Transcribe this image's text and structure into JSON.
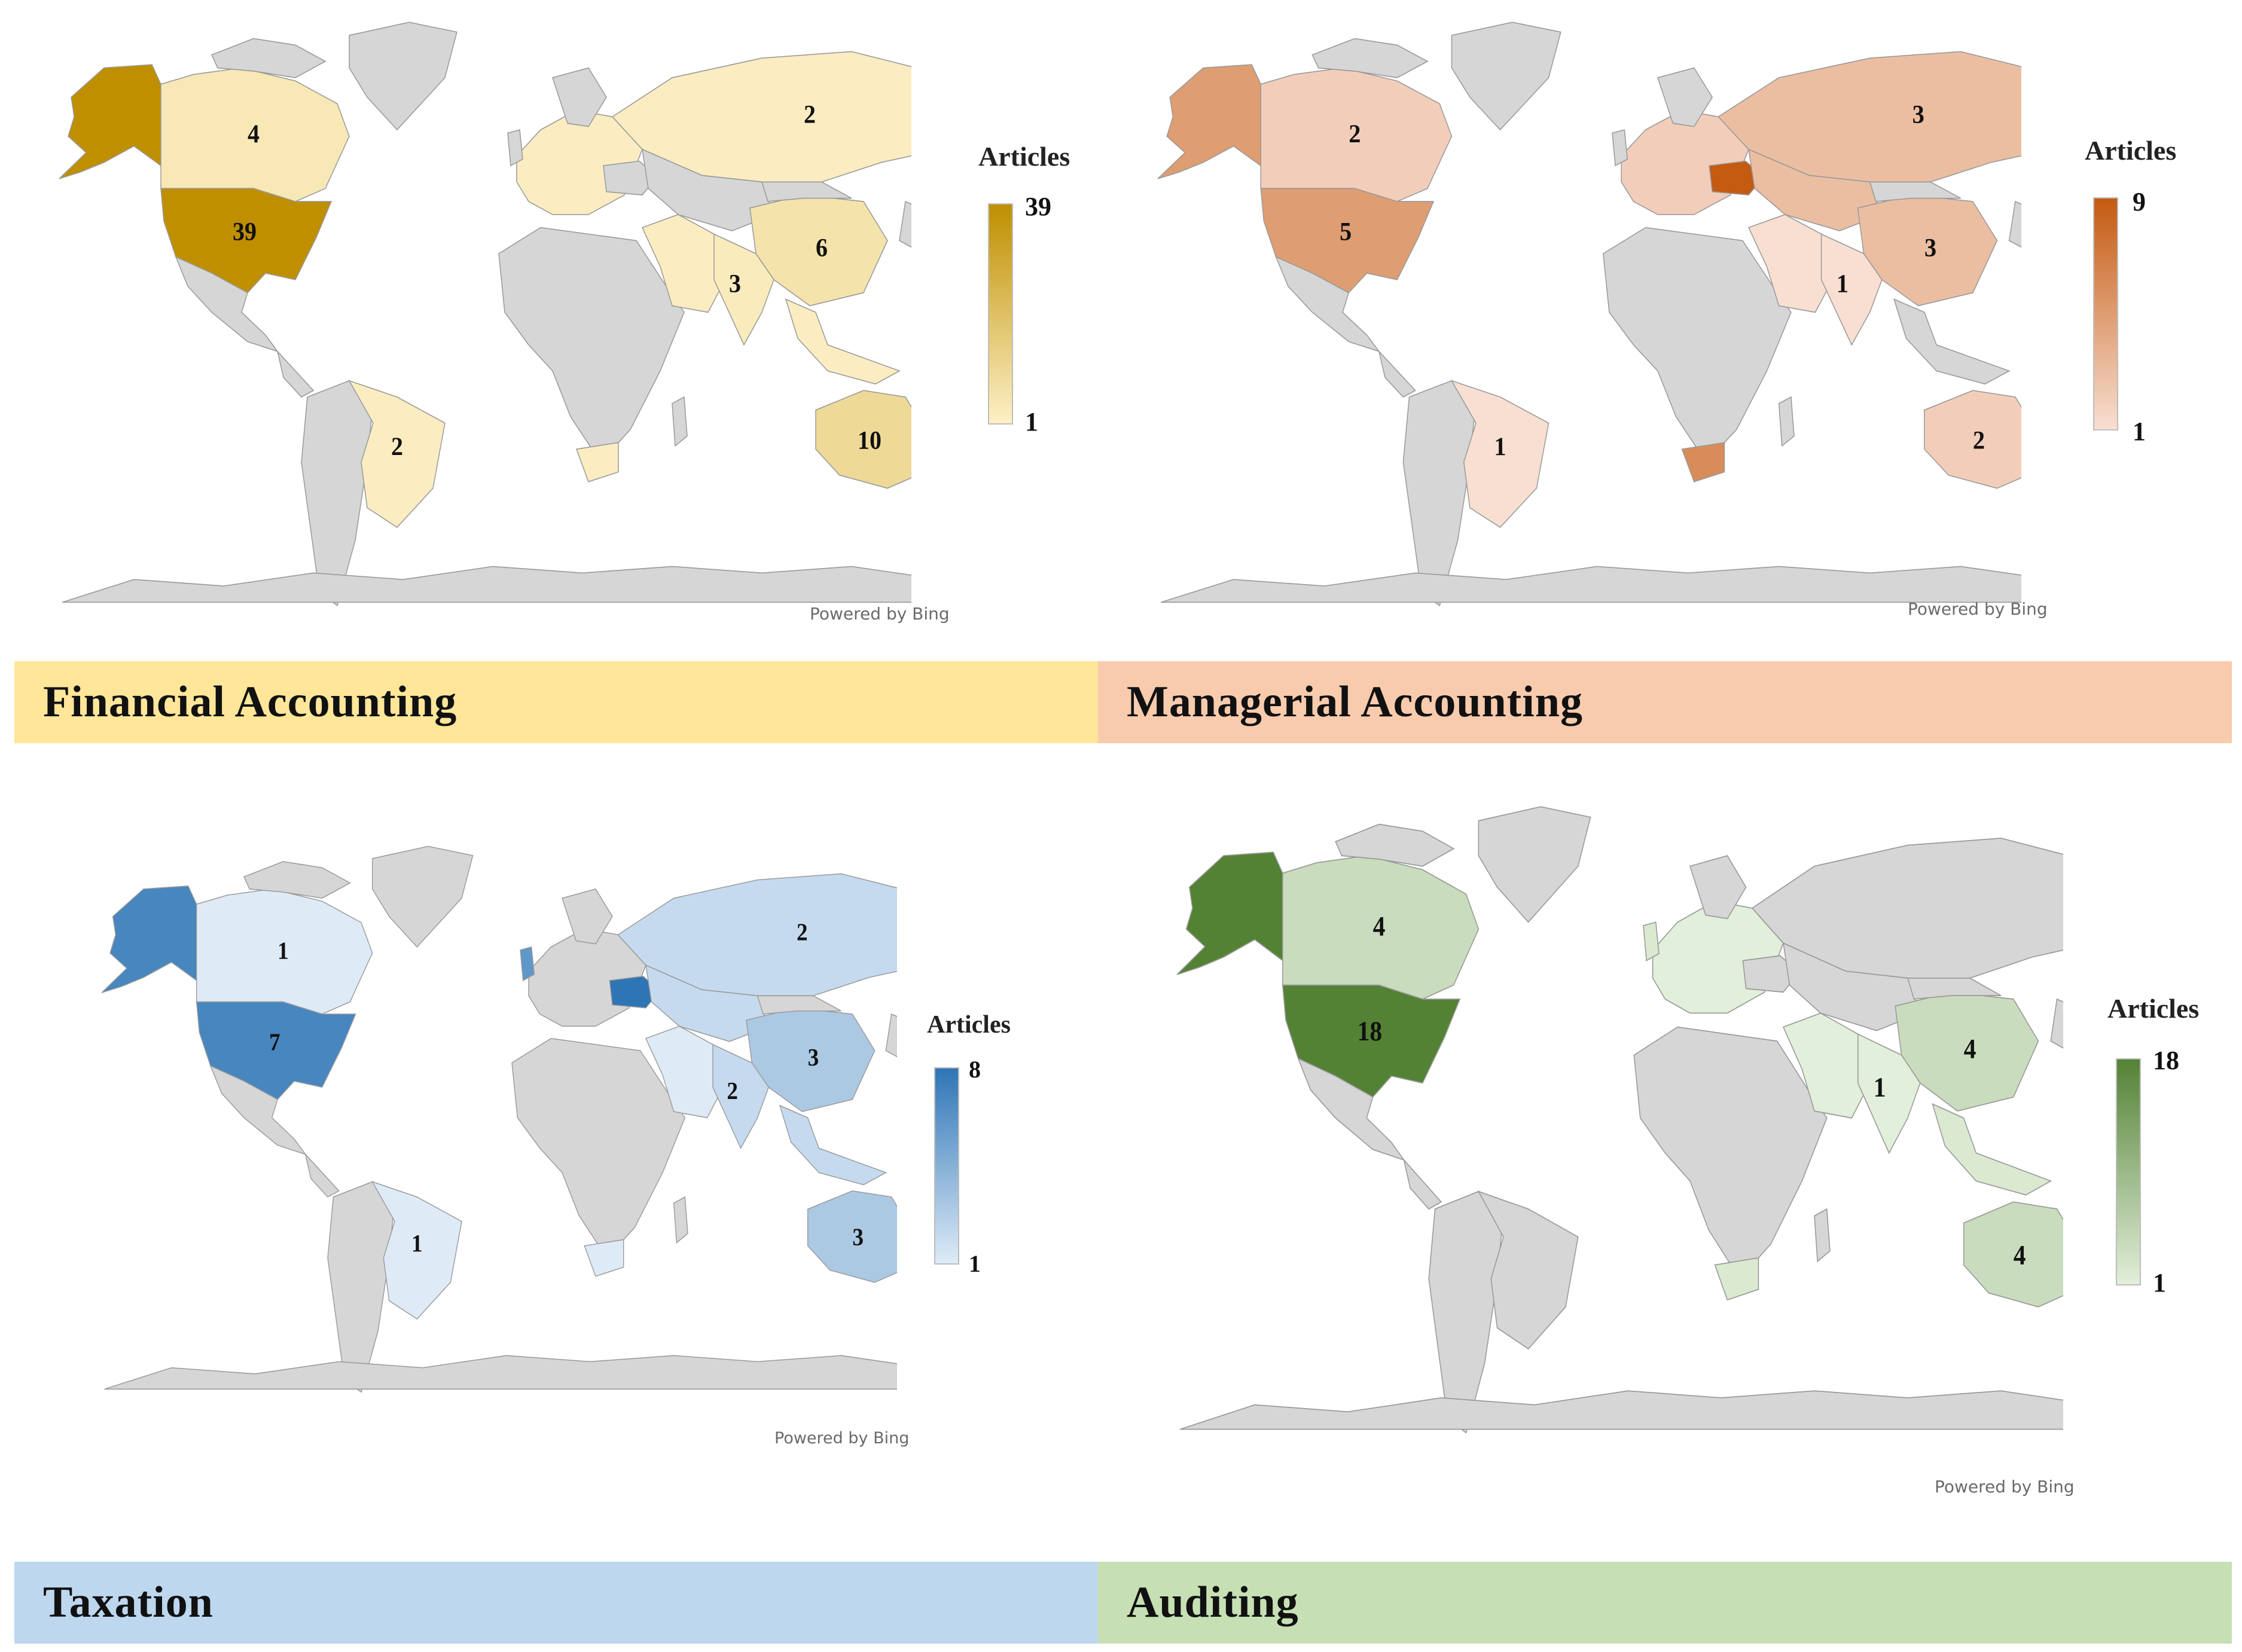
{
  "colors": {
    "no_data": "#d6d6d6",
    "border": "#9a9a9a",
    "financial": {
      "low": "#fdf0c6",
      "high": "#bf8f00",
      "banner": "#ffe699"
    },
    "managerial": {
      "low": "#f8dfd2",
      "high": "#c55a11",
      "banner": "#f8cbad"
    },
    "taxation": {
      "low": "#deebf7",
      "high": "#2e75b6",
      "banner": "#bdd7ee"
    },
    "auditing": {
      "low": "#e2efda",
      "high": "#548235",
      "banner": "#c6e0b4"
    }
  },
  "panels": [
    {
      "id": "financial",
      "banner": "Financial Accounting",
      "legend_title": "Articles",
      "legend_max": "39",
      "legend_min": "1",
      "credit": "Powered by Bing",
      "regions": {
        "alaska": 39,
        "usa": 39,
        "canada": 4,
        "brazil": 2,
        "russia": 2,
        "china": 6,
        "india": 3,
        "australia": 10,
        "europe": 2,
        "middle_east": 2,
        "southeast_asia": 2,
        "south_africa": 2,
        "new_zealand": 2
      },
      "labels": [
        {
          "region": "canada",
          "text": "4"
        },
        {
          "region": "usa",
          "text": "39"
        },
        {
          "region": "russia",
          "text": "2"
        },
        {
          "region": "china",
          "text": "6"
        },
        {
          "region": "india",
          "text": "3"
        },
        {
          "region": "brazil",
          "text": "2"
        },
        {
          "region": "australia",
          "text": "10"
        }
      ]
    },
    {
      "id": "managerial",
      "banner": "Managerial Accounting",
      "legend_title": "Articles",
      "legend_max": "9",
      "legend_min": "1",
      "credit": "Powered by Bing",
      "regions": {
        "alaska": 5,
        "usa": 5,
        "canada": 2,
        "brazil": 1,
        "russia": 3,
        "china": 3,
        "india": 1,
        "australia": 2,
        "ukraine": 9,
        "south_africa": 6,
        "europe": 2,
        "middle_east": 1,
        "central_asia": 3,
        "new_zealand": 1
      },
      "labels": [
        {
          "region": "canada",
          "text": "2"
        },
        {
          "region": "usa",
          "text": "5"
        },
        {
          "region": "russia",
          "text": "3"
        },
        {
          "region": "china",
          "text": "3"
        },
        {
          "region": "india",
          "text": "1"
        },
        {
          "region": "brazil",
          "text": "1"
        },
        {
          "region": "australia",
          "text": "2"
        }
      ]
    },
    {
      "id": "taxation",
      "banner": "Taxation",
      "legend_title": "Articles",
      "legend_max": "8",
      "legend_min": "1",
      "credit": "Powered by Bing",
      "regions": {
        "alaska": 7,
        "usa": 7,
        "canada": 1,
        "brazil": 1,
        "russia": 2,
        "china": 3,
        "india": 2,
        "australia": 3,
        "ukraine": 8,
        "uk": 6,
        "middle_east": 1,
        "central_asia": 2,
        "south_africa": 1,
        "southeast_asia": 2,
        "new_zealand": 2
      },
      "labels": [
        {
          "region": "canada",
          "text": "1"
        },
        {
          "region": "usa",
          "text": "7"
        },
        {
          "region": "russia",
          "text": "2"
        },
        {
          "region": "china",
          "text": "3"
        },
        {
          "region": "india",
          "text": "2"
        },
        {
          "region": "brazil",
          "text": "1"
        },
        {
          "region": "australia",
          "text": "3"
        }
      ]
    },
    {
      "id": "auditing",
      "banner": "Auditing",
      "legend_title": "Articles",
      "legend_max": "18",
      "legend_min": "1",
      "credit": "Powered by Bing",
      "regions": {
        "alaska": 18,
        "usa": 18,
        "canada": 4,
        "china": 4,
        "india": 1,
        "australia": 4,
        "uk": 2,
        "middle_east": 1,
        "southeast_asia": 2,
        "south_africa": 2,
        "new_zealand": 2,
        "europe": 1
      },
      "labels": [
        {
          "region": "canada",
          "text": "4"
        },
        {
          "region": "usa",
          "text": "18"
        },
        {
          "region": "china",
          "text": "4"
        },
        {
          "region": "india",
          "text": "1"
        },
        {
          "region": "australia",
          "text": "4"
        }
      ]
    }
  ]
}
